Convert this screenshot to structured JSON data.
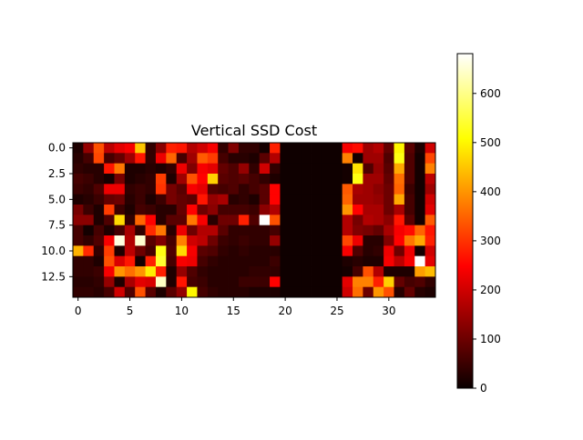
{
  "chart_data": {
    "type": "heatmap",
    "title": "Vertical SSD Cost",
    "xlabel": "",
    "ylabel": "",
    "colormap": "hot",
    "vmin": 0,
    "vmax": 681,
    "xlim": [
      -0.5,
      34.5
    ],
    "ylim": [
      14.5,
      -0.5
    ],
    "x_ticks": [
      0,
      5,
      10,
      15,
      20,
      25,
      30
    ],
    "x_tick_labels": [
      "0",
      "5",
      "10",
      "15",
      "20",
      "25",
      "30"
    ],
    "y_ticks": [
      0,
      2.5,
      5,
      7.5,
      10,
      12.5
    ],
    "y_tick_labels": [
      "0.0",
      "2.5",
      "5.0",
      "7.5",
      "10.0",
      "12.5"
    ],
    "colorbar_ticks": [
      0,
      100,
      200,
      300,
      400,
      500,
      600
    ],
    "colorbar_tick_labels": [
      "0",
      "100",
      "200",
      "300",
      "400",
      "500",
      "600"
    ],
    "values": [
      [
        20,
        140,
        330,
        180,
        220,
        240,
        450,
        40,
        130,
        280,
        270,
        170,
        200,
        240,
        40,
        120,
        40,
        40,
        10,
        280,
        5,
        5,
        5,
        5,
        5,
        5,
        240,
        260,
        150,
        170,
        90,
        500,
        80,
        20,
        200
      ],
      [
        30,
        60,
        320,
        60,
        90,
        150,
        270,
        40,
        230,
        350,
        60,
        150,
        340,
        310,
        60,
        30,
        30,
        20,
        80,
        170,
        5,
        5,
        5,
        5,
        5,
        5,
        380,
        10,
        150,
        150,
        70,
        520,
        70,
        10,
        320
      ],
      [
        40,
        30,
        30,
        270,
        370,
        20,
        20,
        30,
        20,
        40,
        230,
        120,
        240,
        220,
        90,
        70,
        140,
        40,
        200,
        40,
        5,
        5,
        5,
        5,
        5,
        5,
        10,
        480,
        70,
        140,
        80,
        420,
        70,
        10,
        380
      ],
      [
        60,
        50,
        30,
        10,
        110,
        20,
        30,
        40,
        310,
        20,
        150,
        330,
        250,
        460,
        80,
        70,
        80,
        60,
        40,
        20,
        5,
        5,
        5,
        5,
        5,
        5,
        10,
        520,
        150,
        150,
        90,
        360,
        70,
        10,
        180
      ],
      [
        50,
        40,
        70,
        230,
        230,
        40,
        50,
        40,
        300,
        110,
        80,
        240,
        220,
        70,
        60,
        70,
        40,
        60,
        80,
        250,
        5,
        5,
        5,
        5,
        5,
        5,
        340,
        160,
        150,
        130,
        100,
        350,
        50,
        10,
        150
      ],
      [
        20,
        30,
        50,
        90,
        100,
        30,
        50,
        20,
        50,
        110,
        90,
        80,
        270,
        140,
        160,
        30,
        40,
        20,
        80,
        250,
        5,
        5,
        5,
        5,
        5,
        5,
        350,
        150,
        150,
        140,
        100,
        420,
        60,
        10,
        200
      ],
      [
        110,
        50,
        20,
        310,
        50,
        20,
        60,
        50,
        30,
        30,
        90,
        250,
        100,
        130,
        60,
        60,
        60,
        50,
        130,
        170,
        5,
        5,
        5,
        5,
        5,
        5,
        400,
        250,
        160,
        160,
        100,
        160,
        60,
        10,
        220
      ],
      [
        130,
        130,
        20,
        70,
        470,
        40,
        350,
        250,
        30,
        80,
        80,
        370,
        240,
        30,
        100,
        100,
        280,
        70,
        680,
        330,
        5,
        5,
        5,
        5,
        5,
        5,
        170,
        110,
        170,
        160,
        130,
        270,
        80,
        10,
        340
      ],
      [
        60,
        10,
        60,
        20,
        60,
        160,
        40,
        290,
        370,
        30,
        230,
        100,
        170,
        170,
        80,
        40,
        40,
        40,
        40,
        60,
        5,
        5,
        5,
        5,
        5,
        5,
        170,
        120,
        110,
        90,
        160,
        240,
        260,
        350,
        270
      ],
      [
        60,
        40,
        70,
        240,
        660,
        170,
        650,
        80,
        120,
        60,
        380,
        200,
        180,
        100,
        50,
        40,
        50,
        40,
        40,
        140,
        5,
        5,
        5,
        5,
        5,
        5,
        320,
        230,
        30,
        30,
        120,
        250,
        370,
        420,
        280
      ],
      [
        430,
        290,
        40,
        310,
        20,
        180,
        100,
        60,
        520,
        70,
        470,
        240,
        80,
        70,
        40,
        30,
        40,
        30,
        30,
        30,
        5,
        5,
        5,
        5,
        5,
        5,
        240,
        70,
        30,
        40,
        230,
        100,
        230,
        10,
        200
      ],
      [
        40,
        40,
        20,
        330,
        210,
        270,
        10,
        280,
        540,
        60,
        240,
        230,
        60,
        40,
        30,
        30,
        30,
        30,
        30,
        50,
        5,
        5,
        5,
        5,
        5,
        5,
        20,
        30,
        20,
        20,
        240,
        180,
        240,
        680,
        220
      ],
      [
        40,
        40,
        50,
        240,
        400,
        360,
        400,
        490,
        280,
        20,
        140,
        70,
        40,
        30,
        30,
        30,
        30,
        40,
        40,
        40,
        5,
        5,
        5,
        5,
        5,
        5,
        10,
        60,
        330,
        170,
        20,
        20,
        20,
        410,
        440
      ],
      [
        30,
        30,
        40,
        140,
        20,
        160,
        220,
        210,
        640,
        20,
        270,
        60,
        50,
        30,
        30,
        30,
        50,
        50,
        50,
        250,
        5,
        5,
        5,
        5,
        5,
        5,
        220,
        380,
        380,
        280,
        460,
        90,
        60,
        70,
        40
      ],
      [
        40,
        40,
        30,
        60,
        200,
        70,
        330,
        80,
        20,
        80,
        140,
        500,
        60,
        40,
        30,
        30,
        30,
        20,
        20,
        20,
        5,
        5,
        5,
        5,
        5,
        5,
        200,
        360,
        100,
        400,
        330,
        30,
        90,
        30,
        20
      ]
    ]
  }
}
